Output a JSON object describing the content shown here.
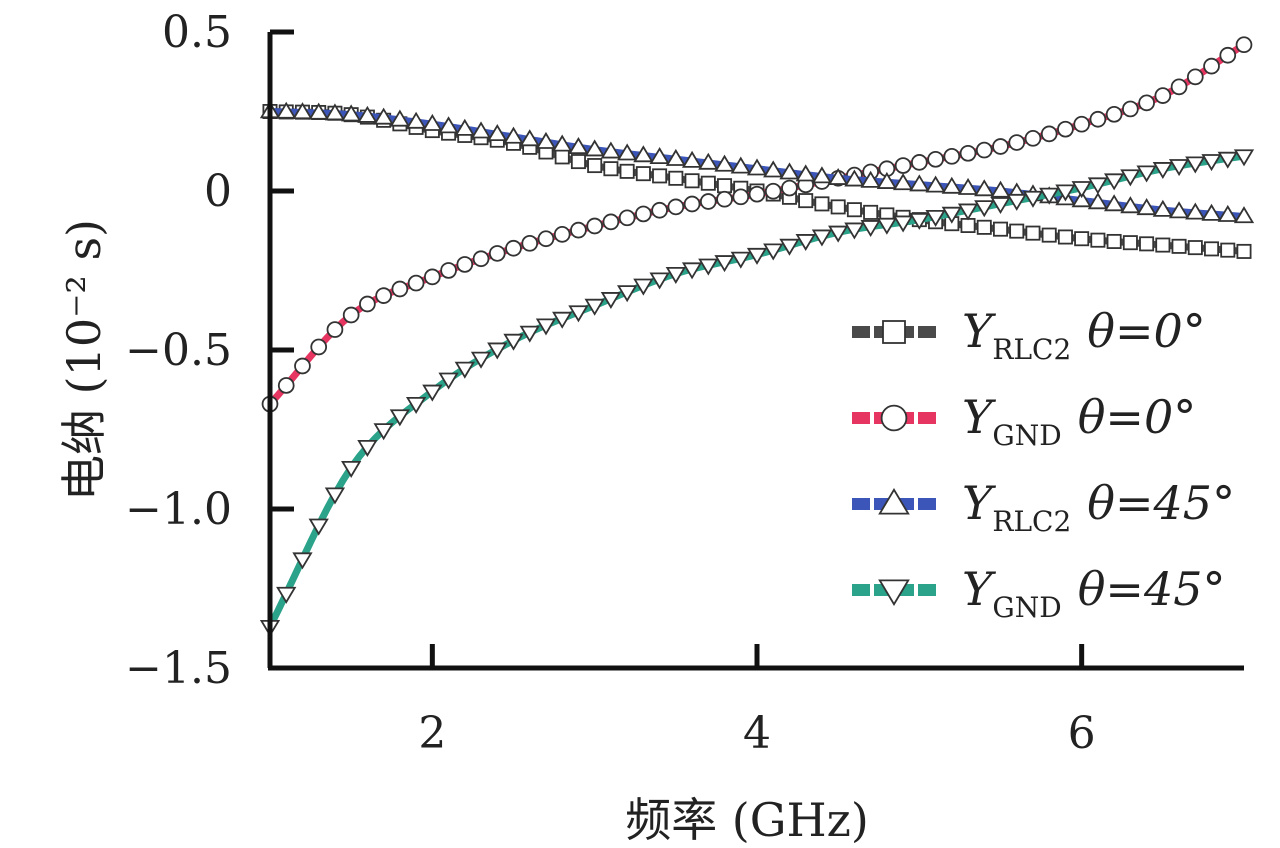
{
  "chart_data": {
    "type": "line",
    "xlabel": "频率 (GHz)",
    "ylabel": "电纳 (10⁻² s)",
    "xlim": [
      1,
      7
    ],
    "ylim": [
      -1.5,
      0.5
    ],
    "x_ticks": [
      2,
      4,
      6
    ],
    "x_tick_labels": [
      "2",
      "4",
      "6"
    ],
    "y_ticks": [
      0.5,
      0,
      -0.5,
      -1.0,
      -1.5
    ],
    "y_tick_labels": [
      "0.5",
      "0",
      "−0.5",
      "−1.0",
      "−1.5"
    ],
    "legend_position": "right",
    "x": [
      1.0,
      1.5,
      2.0,
      2.5,
      3.0,
      3.5,
      4.0,
      4.5,
      5.0,
      5.5,
      6.0,
      6.5,
      7.0
    ],
    "series": [
      {
        "name": "Y_RLC2 θ=0°",
        "label_main": "Y",
        "label_sub": "RLC2",
        "label_rest": "θ=0°",
        "color": "#4a4a4a",
        "marker": "square",
        "values": [
          0.25,
          0.24,
          0.19,
          0.15,
          0.08,
          0.04,
          0.0,
          -0.05,
          -0.09,
          -0.12,
          -0.15,
          -0.17,
          -0.19
        ]
      },
      {
        "name": "Y_GND θ=0°",
        "label_main": "Y",
        "label_sub": "GND",
        "label_rest": "θ=0°",
        "color": "#e63560",
        "marker": "circle",
        "values": [
          -0.67,
          -0.39,
          -0.27,
          -0.18,
          -0.11,
          -0.05,
          -0.01,
          0.04,
          0.09,
          0.14,
          0.21,
          0.3,
          0.46
        ]
      },
      {
        "name": "Y_RLC2 θ=45°",
        "label_main": "Y",
        "label_sub": "RLC2",
        "label_rest": "θ=45°",
        "color": "#3c55b8",
        "marker": "triangle-up",
        "values": [
          0.25,
          0.24,
          0.21,
          0.17,
          0.13,
          0.1,
          0.07,
          0.04,
          0.02,
          0.0,
          -0.03,
          -0.06,
          -0.08
        ]
      },
      {
        "name": "Y_GND θ=45°",
        "label_main": "Y",
        "label_sub": "GND",
        "label_rest": "θ=45°",
        "color": "#2aa38a",
        "marker": "triangle-down",
        "values": [
          -1.37,
          -0.87,
          -0.63,
          -0.47,
          -0.36,
          -0.26,
          -0.2,
          -0.13,
          -0.09,
          -0.04,
          0.01,
          0.07,
          0.11
        ]
      }
    ]
  }
}
